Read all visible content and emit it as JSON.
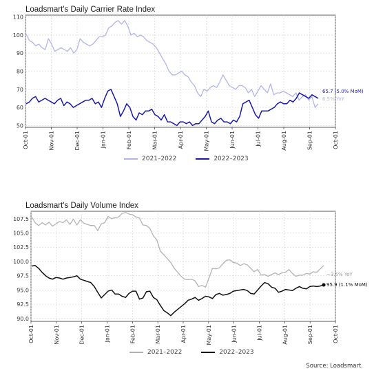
{
  "chart_data": [
    {
      "type": "line",
      "title": "Loadsmart's Daily Carrier Rate Index",
      "ylim": [
        49,
        111
      ],
      "yticks": [
        50,
        60,
        70,
        80,
        90,
        100,
        110
      ],
      "x_tick_labels": [
        "Oct-01",
        "Nov-01",
        "Dec-01",
        "Jan-01",
        "Feb-01",
        "Mar-01",
        "Apr-01",
        "May-01",
        "Jun-01",
        "Jul-01",
        "Aug-01",
        "Sep-01",
        "Oct-01"
      ],
      "grid": true,
      "legend": "bottom-center",
      "series": [
        {
          "name": "2021–2022",
          "color": "#b3b3ec",
          "values": [
            100.5,
            97,
            96,
            94,
            95,
            93,
            92,
            98,
            95,
            91,
            92,
            93,
            92,
            91,
            93,
            90,
            92,
            98,
            96,
            95,
            94,
            95,
            97,
            99,
            99,
            100,
            104,
            105,
            107,
            108,
            106,
            108,
            105,
            100,
            101,
            99,
            100,
            99,
            97,
            96,
            95,
            93,
            90,
            87,
            84,
            80,
            78,
            78,
            79,
            80,
            78,
            77,
            74,
            72,
            68,
            66,
            70,
            69,
            71,
            72,
            71,
            74,
            78,
            75,
            72,
            71,
            70,
            72,
            72,
            71,
            68,
            70,
            66,
            69,
            72,
            70,
            68,
            73,
            67,
            68,
            68,
            69,
            68,
            67,
            66,
            68,
            64,
            66,
            67,
            64,
            66,
            60,
            62
          ]
        },
        {
          "name": "2022–2023",
          "color": "#1a1aa8",
          "values": [
            62,
            63,
            65,
            66,
            63,
            64,
            65,
            64,
            63,
            62,
            64,
            65,
            61,
            63,
            62,
            60,
            61,
            62,
            63,
            64,
            64,
            65,
            62,
            63,
            60,
            65,
            69,
            70,
            66,
            62,
            55,
            58,
            62,
            60,
            55,
            53,
            57,
            56,
            58,
            58,
            59,
            56,
            55,
            53,
            56,
            52,
            52,
            51,
            50,
            52,
            52,
            51,
            52,
            50,
            51,
            51,
            53,
            55,
            58,
            52,
            51,
            53,
            54,
            52,
            52,
            51,
            53,
            52,
            55,
            62,
            63,
            64,
            60,
            56,
            54,
            58,
            58,
            58,
            59,
            60,
            62,
            63,
            62,
            62,
            64,
            63,
            65,
            68,
            67,
            66,
            65,
            67,
            66,
            65
          ]
        }
      ],
      "end_labels": [
        "65.7 (5.0% MoM)",
        "6.5% YoY"
      ]
    },
    {
      "type": "line",
      "title": "Loadsmart's Daily Volume Index",
      "ylim": [
        89.5,
        108.8
      ],
      "yticks": [
        90.0,
        92.5,
        95.0,
        97.5,
        100.0,
        102.5,
        105.0,
        107.5
      ],
      "x_tick_labels": [
        "Oct-01",
        "Nov-01",
        "Dec-01",
        "Jan-01",
        "Feb-01",
        "Mar-01",
        "Apr-01",
        "May-01",
        "Jun-01",
        "Jul-01",
        "Aug-01",
        "Sep-01",
        "Oct-01"
      ],
      "grid": true,
      "legend": "bottom-center",
      "series": [
        {
          "name": "2021–2022",
          "color": "#b3b3b3",
          "values": [
            107.8,
            106.8,
            106.3,
            106.8,
            106.4,
            106.9,
            106.2,
            106.6,
            107,
            106.8,
            107.3,
            106.5,
            107.4,
            106.4,
            107.3,
            106.7,
            106.5,
            106.3,
            106.3,
            105.4,
            106.6,
            106.8,
            107.9,
            107.5,
            107.7,
            107.8,
            108.4,
            108.6,
            108.3,
            108.2,
            107.8,
            107.6,
            106.4,
            106.3,
            105.8,
            104.5,
            103.8,
            101.8,
            101.2,
            100.5,
            99.8,
            98.8,
            98.1,
            97.4,
            96.9,
            96.8,
            96.9,
            96.6,
            95.6,
            95.8,
            95.5,
            97.1,
            98.8,
            98.7,
            98.9,
            99.6,
            100.2,
            100.3,
            99.8,
            99.7,
            99.3,
            99.6,
            99.4,
            98.8,
            98.2,
            98.6,
            97.6,
            97.7,
            97.4,
            97.7,
            98,
            97.7,
            98,
            98.1,
            98.6,
            97.9,
            97.4,
            97.6,
            97.6,
            97.9,
            97.8,
            98.2,
            98.1,
            98.7,
            99.3
          ]
        },
        {
          "name": "2022–2023",
          "color": "#111111",
          "values": [
            99.2,
            99.3,
            98.8,
            98.1,
            97.5,
            97.1,
            96.9,
            97.2,
            97.1,
            96.9,
            97.1,
            97.2,
            97.3,
            97.5,
            96.9,
            96.7,
            96.5,
            96.3,
            95.6,
            94.6,
            93.6,
            94.2,
            94.8,
            95,
            94.3,
            94.3,
            93.9,
            93.7,
            94.4,
            94.8,
            94.8,
            93.4,
            93.6,
            94.7,
            94.8,
            93.7,
            93.3,
            92.3,
            91.4,
            91,
            90.5,
            91.1,
            91.6,
            92.1,
            92.6,
            93.2,
            93.4,
            93.7,
            93.2,
            93.5,
            93.9,
            93.8,
            93.5,
            94.2,
            94.4,
            94.1,
            94.2,
            94.4,
            94.8,
            94.9,
            95,
            95.1,
            94.9,
            94.4,
            94.3,
            95,
            95.7,
            96.3,
            96.1,
            95.5,
            95.3,
            94.6,
            94.8,
            95.1,
            95,
            94.9,
            95.3,
            95.6,
            95.3,
            95.2,
            95.6,
            95.7,
            95.6,
            95.7,
            95.9
          ]
        }
      ],
      "end_labels": [
        "−3.5% YoY",
        "95.9 (1.1% MoM)"
      ]
    }
  ],
  "legend1": {
    "a": "2021–2022",
    "b": "2022–2023"
  },
  "legend2": {
    "a": "2021–2022",
    "b": "2022–2023"
  },
  "source": "Source: Loadsmart."
}
